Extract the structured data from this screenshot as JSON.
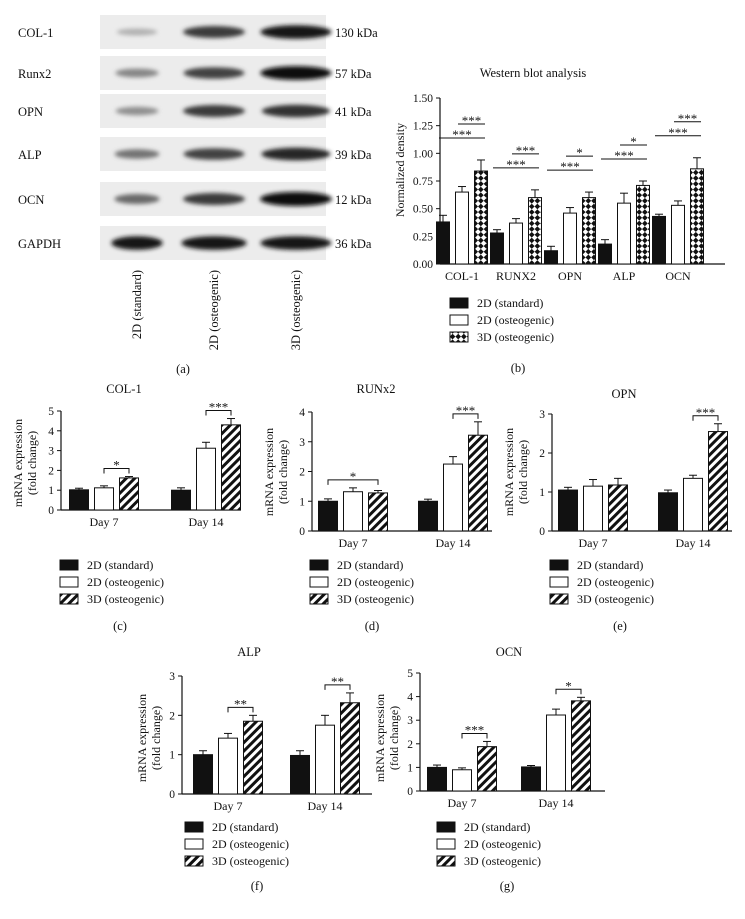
{
  "blot": {
    "panel_label": "(a)",
    "rows": [
      {
        "protein": "COL-1",
        "kda": "130 kDa",
        "intensity": [
          0.12,
          0.75,
          0.95
        ]
      },
      {
        "protein": "Runx2",
        "kda": "57 kDa",
        "intensity": [
          0.35,
          0.7,
          0.97
        ]
      },
      {
        "protein": "OPN",
        "kda": "41 kDa",
        "intensity": [
          0.3,
          0.75,
          0.8
        ]
      },
      {
        "protein": "ALP",
        "kda": "39 kDa",
        "intensity": [
          0.45,
          0.7,
          0.85
        ]
      },
      {
        "protein": "OCN",
        "kda": "12 kDa",
        "intensity": [
          0.5,
          0.75,
          1.0
        ]
      },
      {
        "protein": "GAPDH",
        "kda": "36 kDa",
        "intensity": [
          0.95,
          0.95,
          0.95
        ]
      }
    ],
    "lanes": [
      "2D (standard)",
      "2D (osteogenic)",
      "3D (osteogenic)"
    ]
  },
  "legend_labels": [
    "2D (standard)",
    "2D (osteogenic)",
    "3D (osteogenic)"
  ],
  "chart_data": [
    {
      "id": "b",
      "panel_label": "(b)",
      "type": "bar",
      "title": "Western blot analysis",
      "ylabel": "Normalized density",
      "xlabel": "",
      "ylim": [
        0,
        1.5
      ],
      "ticks": [
        "0.00",
        "0.25",
        "0.50",
        "0.75",
        "1.00",
        "1.25",
        "1.50"
      ],
      "categories": [
        "COL-1",
        "RUNX2",
        "OPN",
        "ALP",
        "OCN"
      ],
      "series": [
        {
          "name": "2D (standard)",
          "values": [
            0.38,
            0.28,
            0.12,
            0.18,
            0.43
          ],
          "errors": [
            0.06,
            0.03,
            0.04,
            0.04,
            0.02
          ]
        },
        {
          "name": "2D (osteogenic)",
          "values": [
            0.65,
            0.37,
            0.46,
            0.55,
            0.53
          ],
          "errors": [
            0.05,
            0.04,
            0.05,
            0.09,
            0.04
          ]
        },
        {
          "name": "3D (osteogenic)",
          "values": [
            0.84,
            0.6,
            0.6,
            0.71,
            0.86
          ],
          "errors": [
            0.1,
            0.07,
            0.05,
            0.04,
            0.1
          ]
        }
      ],
      "significance": [
        {
          "cat": 0,
          "from": 0,
          "to": 2,
          "label": "***"
        },
        {
          "cat": 0,
          "from": 1,
          "to": 2,
          "label": "***"
        },
        {
          "cat": 1,
          "from": 0,
          "to": 2,
          "label": "***"
        },
        {
          "cat": 1,
          "from": 1,
          "to": 2,
          "label": "***"
        },
        {
          "cat": 2,
          "from": 0,
          "to": 2,
          "label": "***"
        },
        {
          "cat": 2,
          "from": 1,
          "to": 2,
          "label": "*"
        },
        {
          "cat": 3,
          "from": 0,
          "to": 2,
          "label": "***"
        },
        {
          "cat": 3,
          "from": 1,
          "to": 2,
          "label": "*"
        },
        {
          "cat": 4,
          "from": 0,
          "to": 2,
          "label": "***"
        },
        {
          "cat": 4,
          "from": 1,
          "to": 2,
          "label": "***"
        }
      ]
    },
    {
      "id": "c",
      "panel_label": "(c)",
      "type": "bar",
      "title": "COL-1",
      "ylabel": "mRNA expression (fold change)",
      "xlabel": "",
      "ylim": [
        0,
        5
      ],
      "ticks": [
        "0",
        "1",
        "2",
        "3",
        "4",
        "5"
      ],
      "categories": [
        "Day 7",
        "Day 14"
      ],
      "series": [
        {
          "name": "2D (standard)",
          "values": [
            1.02,
            1.0
          ],
          "errors": [
            0.08,
            0.12
          ]
        },
        {
          "name": "2D (osteogenic)",
          "values": [
            1.12,
            3.12
          ],
          "errors": [
            0.1,
            0.3
          ]
        },
        {
          "name": "3D (osteogenic)",
          "values": [
            1.62,
            4.3
          ],
          "errors": [
            0.07,
            0.32
          ]
        }
      ],
      "significance": [
        {
          "cat": 0,
          "from": 1,
          "to": 2,
          "label": "*"
        },
        {
          "cat": 1,
          "from": 1,
          "to": 2,
          "label": "***"
        }
      ]
    },
    {
      "id": "d",
      "panel_label": "(d)",
      "type": "bar",
      "title": "RUNx2",
      "ylabel": "mRNA expression (fold change)",
      "xlabel": "",
      "ylim": [
        0,
        4
      ],
      "ticks": [
        "0",
        "1",
        "2",
        "3",
        "4"
      ],
      "categories": [
        "Day 7",
        "Day 14"
      ],
      "series": [
        {
          "name": "2D (standard)",
          "values": [
            1.0,
            1.0
          ],
          "errors": [
            0.08,
            0.07
          ]
        },
        {
          "name": "2D (osteogenic)",
          "values": [
            1.32,
            2.25
          ],
          "errors": [
            0.13,
            0.25
          ]
        },
        {
          "name": "3D (osteogenic)",
          "values": [
            1.28,
            3.22
          ],
          "errors": [
            0.08,
            0.45
          ]
        }
      ],
      "significance": [
        {
          "cat": 0,
          "from": 0,
          "to": 2,
          "label": "*"
        },
        {
          "cat": 1,
          "from": 1,
          "to": 2,
          "label": "***"
        }
      ]
    },
    {
      "id": "e",
      "panel_label": "(e)",
      "type": "bar",
      "title": "OPN",
      "ylabel": "mRNA expression (fold change)",
      "xlabel": "",
      "ylim": [
        0,
        3
      ],
      "ticks": [
        "0",
        "1",
        "2",
        "3"
      ],
      "categories": [
        "Day 7",
        "Day 14"
      ],
      "series": [
        {
          "name": "2D (standard)",
          "values": [
            1.05,
            0.98
          ],
          "errors": [
            0.07,
            0.07
          ]
        },
        {
          "name": "2D (osteogenic)",
          "values": [
            1.15,
            1.35
          ],
          "errors": [
            0.17,
            0.08
          ]
        },
        {
          "name": "3D (osteogenic)",
          "values": [
            1.18,
            2.55
          ],
          "errors": [
            0.17,
            0.2
          ]
        }
      ],
      "significance": [
        {
          "cat": 1,
          "from": 1,
          "to": 2,
          "label": "***"
        }
      ]
    },
    {
      "id": "f",
      "panel_label": "(f)",
      "type": "bar",
      "title": "ALP",
      "ylabel": "mRNA expression (fold change)",
      "xlabel": "",
      "ylim": [
        0,
        3
      ],
      "ticks": [
        "0",
        "1",
        "2",
        "3"
      ],
      "categories": [
        "Day 7",
        "Day 14"
      ],
      "series": [
        {
          "name": "2D (standard)",
          "values": [
            1.0,
            0.98
          ],
          "errors": [
            0.1,
            0.12
          ]
        },
        {
          "name": "2D (osteogenic)",
          "values": [
            1.42,
            1.75
          ],
          "errors": [
            0.12,
            0.25
          ]
        },
        {
          "name": "3D (osteogenic)",
          "values": [
            1.85,
            2.32
          ],
          "errors": [
            0.15,
            0.25
          ]
        }
      ],
      "significance": [
        {
          "cat": 0,
          "from": 1,
          "to": 2,
          "label": "**"
        },
        {
          "cat": 1,
          "from": 1,
          "to": 2,
          "label": "**"
        }
      ]
    },
    {
      "id": "g",
      "panel_label": "(g)",
      "type": "bar",
      "title": "OCN",
      "ylabel": "mRNA expression (fold change)",
      "xlabel": "",
      "ylim": [
        0,
        5
      ],
      "ticks": [
        "0",
        "1",
        "2",
        "3",
        "4",
        "5"
      ],
      "categories": [
        "Day 7",
        "Day 14"
      ],
      "series": [
        {
          "name": "2D (standard)",
          "values": [
            1.0,
            1.02
          ],
          "errors": [
            0.1,
            0.06
          ]
        },
        {
          "name": "2D (osteogenic)",
          "values": [
            0.9,
            3.22
          ],
          "errors": [
            0.08,
            0.25
          ]
        },
        {
          "name": "3D (osteogenic)",
          "values": [
            1.88,
            3.82
          ],
          "errors": [
            0.22,
            0.15
          ]
        }
      ],
      "significance": [
        {
          "cat": 0,
          "from": 1,
          "to": 2,
          "label": "***"
        },
        {
          "cat": 1,
          "from": 1,
          "to": 2,
          "label": "*"
        }
      ]
    }
  ]
}
